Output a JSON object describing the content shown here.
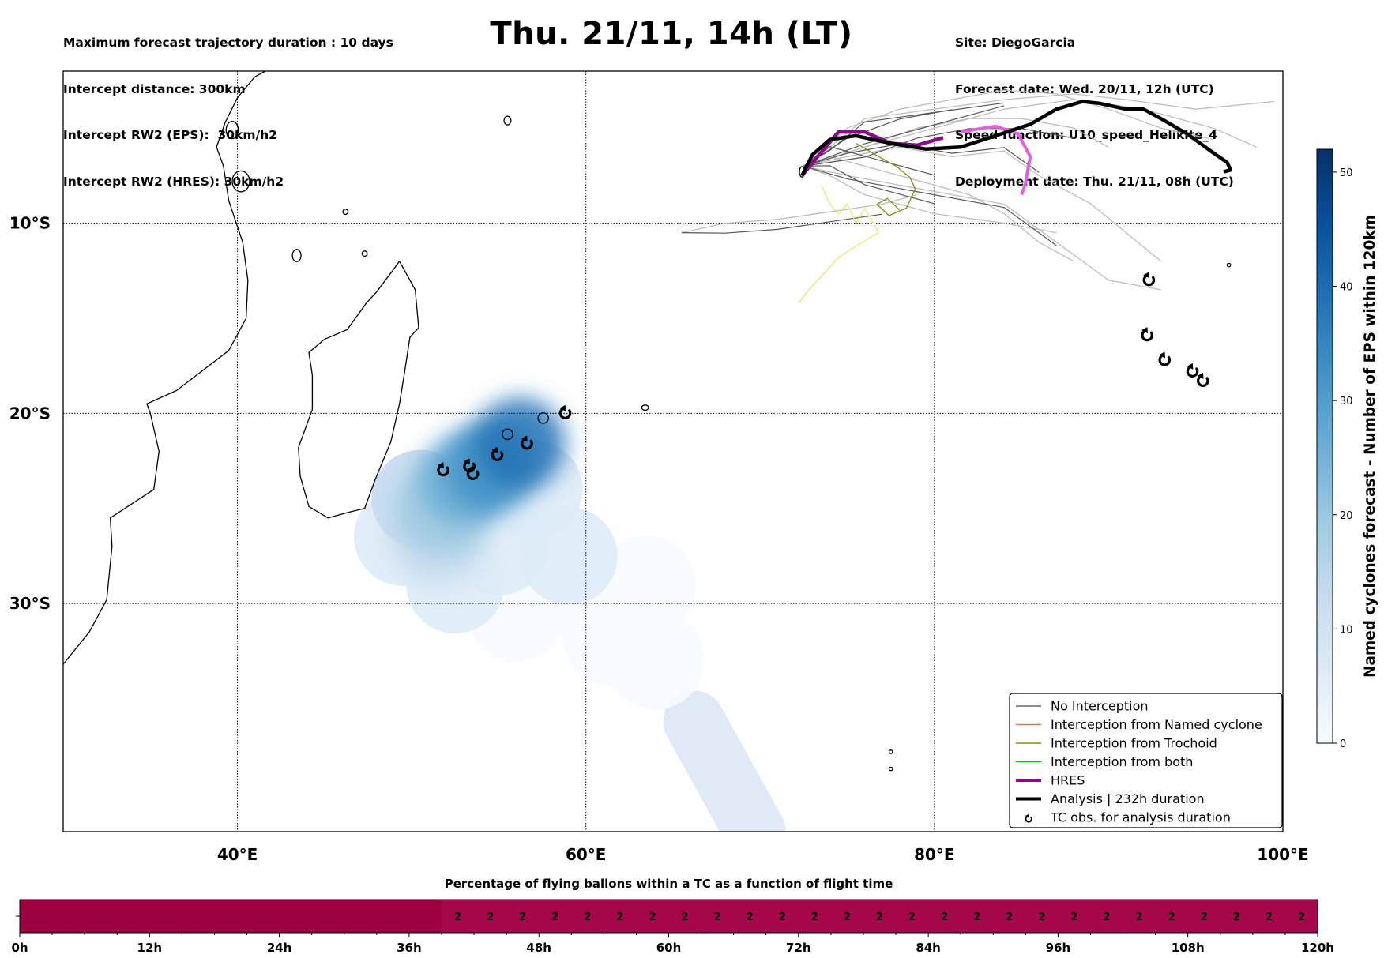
{
  "header": {
    "title": "Thu. 21/11, 14h (LT)",
    "info_left": [
      "Maximum forecast trajectory duration : 10 days",
      "Intercept distance: 300km",
      "Intercept RW2 (EPS):  30km/h2",
      "Intercept RW2 (HRES): 30km/h2"
    ],
    "info_right": [
      "Site: DiegoGarcia",
      "Forecast date: Wed. 20/11, 12h (UTC)",
      "Speed function: U10_speed_Helikite_4",
      "Deployment date: Thu. 21/11, 08h (UTC)"
    ]
  },
  "chart_data": [
    {
      "type": "map",
      "xlim": [
        30,
        100
      ],
      "ylim": [
        -42,
        -2
      ],
      "x_ticks": [
        {
          "value": 40,
          "label": "40°E"
        },
        {
          "value": 60,
          "label": "60°E"
        },
        {
          "value": 80,
          "label": "80°E"
        },
        {
          "value": 100,
          "label": "100°E"
        }
      ],
      "y_ticks": [
        {
          "value": -10,
          "label": "10°S"
        },
        {
          "value": -20,
          "label": "20°S"
        },
        {
          "value": -30,
          "label": "30°S"
        }
      ],
      "grid": true,
      "legend_position": "bottom-right",
      "legend": [
        {
          "label": "No Interception",
          "color": "#666666",
          "style": "line-thin"
        },
        {
          "label": "Interception from Named cyclone",
          "color": "#ff6a2a",
          "style": "line-thin"
        },
        {
          "label": "Interception from Trochoid",
          "color": "#8a8a10",
          "style": "line-thin"
        },
        {
          "label": "Interception from both",
          "color": "#22aa22",
          "style": "line-thin"
        },
        {
          "label": "HRES",
          "color": "#8b0a8b",
          "style": "line-thick"
        },
        {
          "label": "Analysis | 232h duration",
          "color": "#000000",
          "style": "line-thick"
        },
        {
          "label": "TC obs. for analysis duration",
          "color": "#000000",
          "style": "tc-symbol"
        }
      ],
      "series": [
        {
          "name": "HRES",
          "points": [
            [
              72.4,
              -7.5
            ],
            [
              73.2,
              -6.6
            ],
            [
              74.5,
              -5.2
            ],
            [
              76.0,
              -5.2
            ],
            [
              77.5,
              -5.8
            ],
            [
              79.0,
              -5.9
            ],
            [
              80.5,
              -5.5
            ],
            [
              82.0,
              -5.0
            ],
            [
              83.5,
              -4.9
            ],
            [
              84.8,
              -5.3
            ],
            [
              85.5,
              -6.5
            ],
            [
              85.2,
              -8.0
            ],
            [
              85.0,
              -8.5
            ]
          ]
        },
        {
          "name": "HRES (future)",
          "color": "#e060e0",
          "points": [
            [
              81.5,
              -5.2
            ],
            [
              83.5,
              -4.9
            ],
            [
              84.8,
              -5.3
            ],
            [
              85.5,
              -6.5
            ],
            [
              85.2,
              -8.0
            ],
            [
              85.0,
              -8.5
            ]
          ]
        },
        {
          "name": "Analysis | 232h duration",
          "points": [
            [
              72.4,
              -7.5
            ],
            [
              73.0,
              -6.4
            ],
            [
              74.0,
              -5.6
            ],
            [
              75.5,
              -5.4
            ],
            [
              77.5,
              -5.8
            ],
            [
              79.5,
              -6.1
            ],
            [
              81.5,
              -6.0
            ],
            [
              83.5,
              -5.4
            ],
            [
              85.5,
              -4.8
            ],
            [
              87.0,
              -4.0
            ],
            [
              88.5,
              -3.6
            ],
            [
              89.5,
              -3.7
            ],
            [
              91.0,
              -4.0
            ],
            [
              92.0,
              -4.0
            ],
            [
              93.0,
              -4.5
            ],
            [
              94.5,
              -5.3
            ],
            [
              96.0,
              -6.3
            ],
            [
              96.8,
              -6.8
            ],
            [
              97.0,
              -7.2
            ],
            [
              96.6,
              -7.3
            ]
          ]
        },
        {
          "name": "No Interception",
          "color": "#bdbdbd",
          "tracks": [
            [
              [
                72.5,
                -7.0
              ],
              [
                75,
                -5
              ],
              [
                78,
                -4
              ],
              [
                81,
                -3.5
              ],
              [
                84,
                -3.0
              ],
              [
                87,
                -3.2
              ],
              [
                90,
                -4
              ],
              [
                93,
                -5
              ],
              [
                96,
                -5.6
              ]
            ],
            [
              [
                72.5,
                -7.0
              ],
              [
                74,
                -6
              ],
              [
                76,
                -4.5
              ],
              [
                80,
                -4
              ],
              [
                84,
                -3.5
              ],
              [
                88,
                -3.2
              ],
              [
                91,
                -3.5
              ],
              [
                95,
                -4
              ],
              [
                99.5,
                -3.6
              ]
            ],
            [
              [
                72.5,
                -7.0
              ],
              [
                75,
                -6.5
              ],
              [
                78,
                -6.0
              ],
              [
                81,
                -6.5
              ],
              [
                84,
                -6.2
              ],
              [
                86,
                -7.5
              ],
              [
                89,
                -9
              ],
              [
                91,
                -10.5
              ],
              [
                93,
                -12
              ]
            ],
            [
              [
                72.5,
                -7.0
              ],
              [
                74,
                -7.5
              ],
              [
                76,
                -8.5
              ],
              [
                80,
                -9.5
              ],
              [
                84,
                -10
              ],
              [
                87,
                -10.5
              ]
            ],
            [
              [
                65.5,
                -10.5
              ],
              [
                68,
                -10.0
              ],
              [
                71,
                -9.8
              ],
              [
                74,
                -9.4
              ],
              [
                77,
                -9.0
              ],
              [
                79,
                -8.5
              ]
            ],
            [
              [
                72.5,
                -7.0
              ],
              [
                75,
                -7.5
              ],
              [
                78,
                -8
              ],
              [
                81,
                -8.5
              ],
              [
                84,
                -9
              ],
              [
                87,
                -11
              ],
              [
                90,
                -13.0
              ],
              [
                93,
                -13.5
              ]
            ],
            [
              [
                72.5,
                -7.0
              ],
              [
                76,
                -6
              ],
              [
                80,
                -5
              ],
              [
                84,
                -4
              ],
              [
                88,
                -3.5
              ],
              [
                92,
                -4
              ],
              [
                96,
                -5
              ],
              [
                98.5,
                -6
              ]
            ],
            [
              [
                72.5,
                -7.0
              ],
              [
                74,
                -6.5
              ],
              [
                76,
                -7
              ],
              [
                78,
                -7.5
              ],
              [
                80,
                -8
              ],
              [
                82,
                -8.5
              ],
              [
                84,
                -9.5
              ],
              [
                86,
                -11
              ],
              [
                88,
                -12
              ]
            ],
            [
              [
                72.5,
                -7.0
              ],
              [
                76,
                -6
              ],
              [
                79,
                -5
              ],
              [
                82,
                -4.5
              ],
              [
                85,
                -4.5
              ],
              [
                88,
                -5
              ],
              [
                90,
                -6
              ]
            ]
          ]
        },
        {
          "name": "Interception from Trochoid",
          "color": "#8a8a10",
          "tracks": [
            [
              [
                75.5,
                -5.8
              ],
              [
                76.8,
                -6.5
              ],
              [
                77.8,
                -7.0
              ],
              [
                78.6,
                -7.6
              ],
              [
                78.9,
                -8.2
              ],
              [
                78.4,
                -9.2
              ],
              [
                77.4,
                -9.6
              ],
              [
                76.7,
                -9.0
              ],
              [
                77.3,
                -8.7
              ],
              [
                78.0,
                -9.3
              ]
            ]
          ]
        },
        {
          "name": "Interception from Trochoid (future)",
          "color": "#e8e870",
          "tracks": [
            [
              [
                73.5,
                -8.0
              ],
              [
                74.0,
                -9.0
              ],
              [
                74.5,
                -9.5
              ],
              [
                75.0,
                -9.0
              ],
              [
                75.5,
                -10.0
              ],
              [
                76.0,
                -9.2
              ],
              [
                76.8,
                -10.5
              ],
              [
                75.5,
                -11.2
              ],
              [
                74.5,
                -11.8
              ],
              [
                73.5,
                -12.8
              ],
              [
                72.8,
                -13.5
              ],
              [
                72.2,
                -14.2
              ]
            ]
          ]
        }
      ],
      "tc_observations": [
        {
          "lon": 51.8,
          "lat": -23.0
        },
        {
          "lon": 53.3,
          "lat": -22.8
        },
        {
          "lon": 53.5,
          "lat": -23.2
        },
        {
          "lon": 54.9,
          "lat": -22.2
        },
        {
          "lon": 56.6,
          "lat": -21.6
        },
        {
          "lon": 58.8,
          "lat": -20.0
        },
        {
          "lon": 92.3,
          "lat": -13.0
        },
        {
          "lon": 92.2,
          "lat": -15.9
        },
        {
          "lon": 93.2,
          "lat": -17.2
        },
        {
          "lon": 94.8,
          "lat": -17.8
        },
        {
          "lon": 95.4,
          "lat": -18.3
        }
      ],
      "density_field": {
        "description": "Named cyclones forecast - Number of EPS within 120km",
        "blobs": [
          {
            "lon": 54.5,
            "lat": -22.8,
            "value": 32
          },
          {
            "lon": 56.2,
            "lat": -21.6,
            "value": 42
          },
          {
            "lon": 53.0,
            "lat": -23.5,
            "value": 28
          },
          {
            "lon": 51.8,
            "lat": -25.0,
            "value": 18
          },
          {
            "lon": 51.5,
            "lat": -26.5,
            "value": 12
          },
          {
            "lon": 50.5,
            "lat": -24.5,
            "value": 10
          },
          {
            "lon": 57.0,
            "lat": -24.0,
            "value": 8
          },
          {
            "lon": 49.5,
            "lat": -26.5,
            "value": 5
          },
          {
            "lon": 52.5,
            "lat": -29.0,
            "value": 4
          },
          {
            "lon": 56.0,
            "lat": -30.5,
            "value": 3
          },
          {
            "lon": 60.0,
            "lat": -29.5,
            "value": 3
          },
          {
            "lon": 63.5,
            "lat": -29.0,
            "value": 3
          },
          {
            "lon": 61.5,
            "lat": -31.8,
            "value": 3
          },
          {
            "lon": 64.0,
            "lat": -33.0,
            "value": 3
          },
          {
            "lon": 59.0,
            "lat": -27.5,
            "value": 4
          },
          {
            "lon": 55.0,
            "lat": -27.0,
            "value": 5
          }
        ],
        "stripe": [
          [
            66.2,
            -36.2
          ],
          [
            69.7,
            -42.0
          ]
        ]
      }
    },
    {
      "type": "heatmap",
      "title": "Percentage of flying ballons within a TC as a function of flight time",
      "xlim": [
        0,
        120
      ],
      "x_ticks": [
        "0h",
        "12h",
        "24h",
        "36h",
        "48h",
        "60h",
        "72h",
        "84h",
        "96h",
        "108h",
        "120h"
      ],
      "cells_start_hour": 39,
      "cell_width_hours": 3,
      "cell_values": [
        2,
        2,
        2,
        2,
        2,
        2,
        2,
        2,
        2,
        2,
        2,
        2,
        2,
        2,
        2,
        2,
        2,
        2,
        2,
        2,
        2,
        2,
        2,
        2,
        2,
        2,
        2
      ],
      "bar_color": "#9e0142"
    },
    {
      "type": "colorbar",
      "label": "Named cyclones forecast - Number of EPS within 120km",
      "range": [
        0,
        52
      ],
      "ticks": [
        0,
        10,
        20,
        30,
        40,
        50
      ],
      "colors": [
        "#f7fbff",
        "#deebf7",
        "#c6dbef",
        "#9ecae1",
        "#6baed6",
        "#4292c6",
        "#2171b5",
        "#08519c",
        "#08306b"
      ]
    }
  ]
}
